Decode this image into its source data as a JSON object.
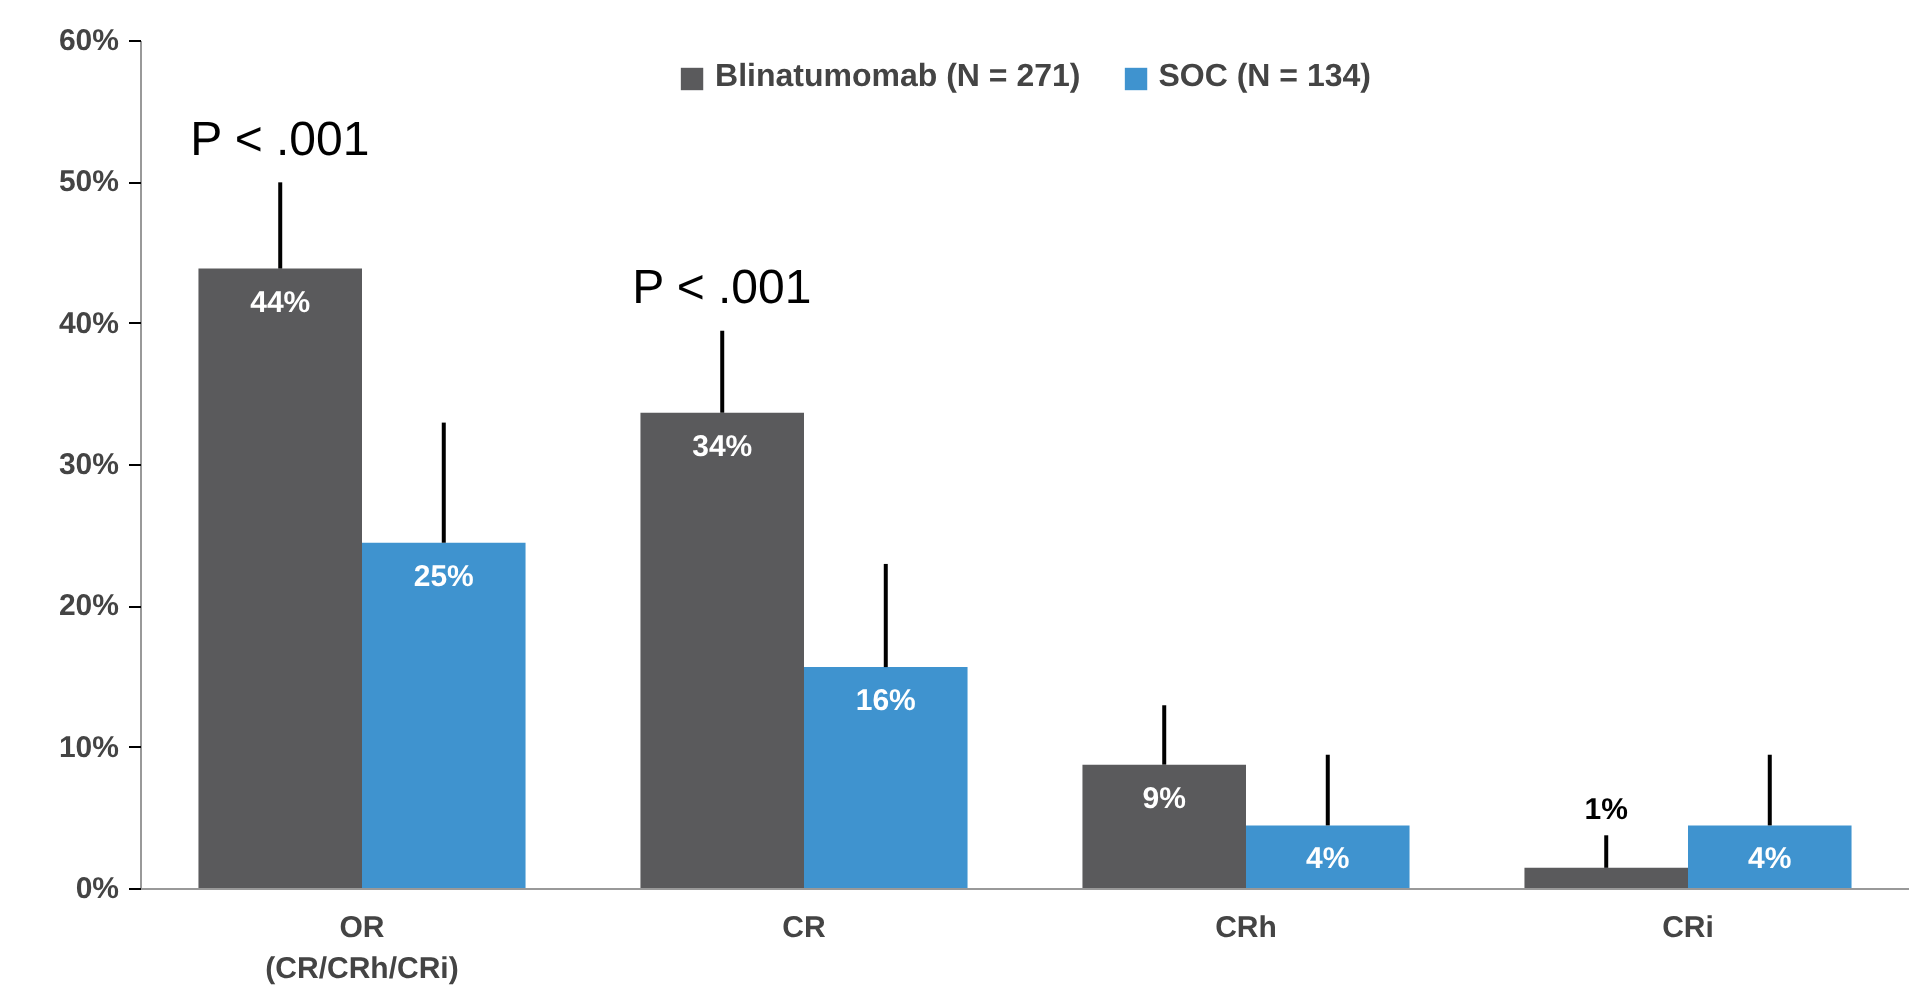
{
  "chart_data": {
    "type": "bar",
    "categories": [
      "OR\n(CR/CRh/CRi)",
      "CR",
      "CRh",
      "CRi"
    ],
    "series": [
      {
        "name": "Blinatumomab (N = 271)",
        "color": "#5a5a5c",
        "values": [
          43.9,
          33.7,
          8.8,
          1.5
        ],
        "value_labels": [
          "44%",
          "34%",
          "9%",
          "1%"
        ],
        "errors": [
          [
            43.9,
            50
          ],
          [
            33.7,
            39.5
          ],
          [
            8.8,
            13
          ],
          [
            1.5,
            3.8
          ]
        ]
      },
      {
        "name": "SOC (N = 134)",
        "color": "#3f93cf",
        "values": [
          24.5,
          15.7,
          4.5,
          4.5
        ],
        "value_labels": [
          "25%",
          "16%",
          "4%",
          "4%"
        ],
        "errors": [
          [
            24.5,
            33
          ],
          [
            15.7,
            23
          ],
          [
            4.5,
            9.5
          ],
          [
            4.5,
            9.5
          ]
        ]
      }
    ],
    "ylim": [
      0,
      60
    ],
    "yticks": [
      {
        "value": 0,
        "label": "0%"
      },
      {
        "value": 10,
        "label": "10%"
      },
      {
        "value": 20,
        "label": "20%"
      },
      {
        "value": 30,
        "label": "30%"
      },
      {
        "value": 40,
        "label": "40%"
      },
      {
        "value": 50,
        "label": "50%"
      },
      {
        "value": 60,
        "label": "60%"
      }
    ],
    "grid": false,
    "legend": "top",
    "annotations": [
      "P < .001",
      "P < .001"
    ]
  }
}
